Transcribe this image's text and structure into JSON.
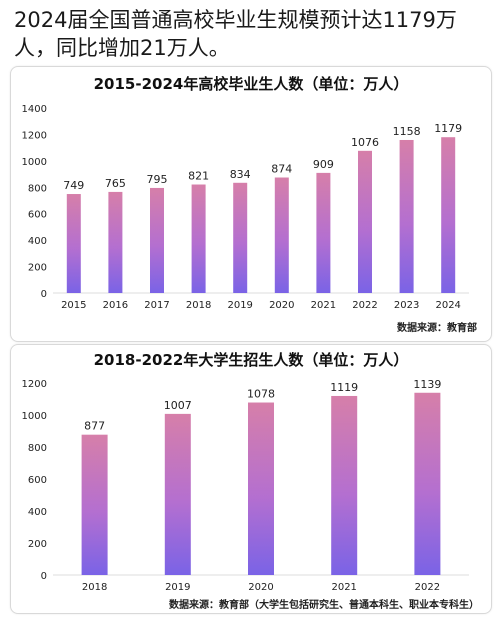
{
  "headline": "2024届全国普通高校毕业生规模预计达1179万人，同比增加21万人。",
  "colors": {
    "bar_top": "#d67fa9",
    "bar_mid": "#b46fd0",
    "bar_bottom": "#7a63e6",
    "axis_text": "#222222",
    "gridline": "#eeeeee"
  },
  "chart_data": [
    {
      "type": "bar",
      "title": "2015-2024年高校毕业生人数（单位：万人）",
      "categories": [
        "2015",
        "2016",
        "2017",
        "2018",
        "2019",
        "2020",
        "2021",
        "2022",
        "2023",
        "2024"
      ],
      "values": [
        749,
        765,
        795,
        821,
        834,
        874,
        909,
        1076,
        1158,
        1179
      ],
      "ylim": [
        0,
        1400
      ],
      "yticks": [
        0,
        200,
        400,
        600,
        800,
        1000,
        1200,
        1400
      ],
      "xlabel": "",
      "ylabel": "",
      "grid": false,
      "source": "数据来源：教育部"
    },
    {
      "type": "bar",
      "title": "2018-2022年大学生招生人数（单位：万人）",
      "categories": [
        "2018",
        "2019",
        "2020",
        "2021",
        "2022"
      ],
      "values": [
        877,
        1007,
        1078,
        1119,
        1139
      ],
      "ylim": [
        0,
        1200
      ],
      "yticks": [
        0,
        200,
        400,
        600,
        800,
        1000,
        1200
      ],
      "xlabel": "",
      "ylabel": "",
      "grid": false,
      "source": "数据来源：教育部（大学生包括研究生、普通本科生、职业本专科生）"
    }
  ]
}
